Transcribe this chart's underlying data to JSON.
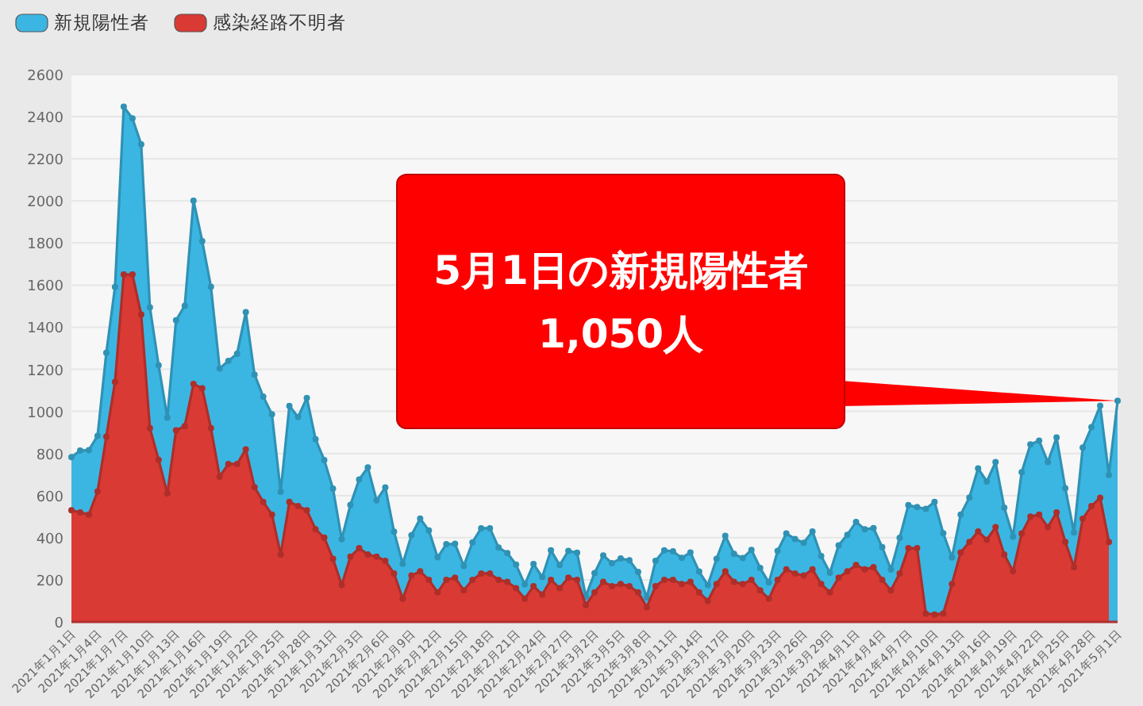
{
  "chart_data": {
    "type": "area",
    "legend": "top left",
    "grid": "y",
    "marker": "circle",
    "x": [
      "2021-01-01",
      "2021-01-02",
      "2021-01-03",
      "2021-01-04",
      "2021-01-05",
      "2021-01-06",
      "2021-01-07",
      "2021-01-08",
      "2021-01-09",
      "2021-01-10",
      "2021-01-11",
      "2021-01-12",
      "2021-01-13",
      "2021-01-14",
      "2021-01-15",
      "2021-01-16",
      "2021-01-17",
      "2021-01-18",
      "2021-01-19",
      "2021-01-20",
      "2021-01-21",
      "2021-01-22",
      "2021-01-23",
      "2021-01-24",
      "2021-01-25",
      "2021-01-26",
      "2021-01-27",
      "2021-01-28",
      "2021-01-29",
      "2021-01-30",
      "2021-01-31",
      "2021-02-01",
      "2021-02-02",
      "2021-02-03",
      "2021-02-04",
      "2021-02-05",
      "2021-02-06",
      "2021-02-07",
      "2021-02-08",
      "2021-02-09",
      "2021-02-10",
      "2021-02-11",
      "2021-02-12",
      "2021-02-13",
      "2021-02-14",
      "2021-02-15",
      "2021-02-16",
      "2021-02-17",
      "2021-02-18",
      "2021-02-19",
      "2021-02-20",
      "2021-02-21",
      "2021-02-22",
      "2021-02-23",
      "2021-02-24",
      "2021-02-25",
      "2021-02-26",
      "2021-02-27",
      "2021-02-28",
      "2021-03-01",
      "2021-03-02",
      "2021-03-03",
      "2021-03-04",
      "2021-03-05",
      "2021-03-06",
      "2021-03-07",
      "2021-03-08",
      "2021-03-09",
      "2021-03-10",
      "2021-03-11",
      "2021-03-12",
      "2021-03-13",
      "2021-03-14",
      "2021-03-15",
      "2021-03-16",
      "2021-03-17",
      "2021-03-18",
      "2021-03-19",
      "2021-03-20",
      "2021-03-21",
      "2021-03-22",
      "2021-03-23",
      "2021-03-24",
      "2021-03-25",
      "2021-03-26",
      "2021-03-27",
      "2021-03-28",
      "2021-03-29",
      "2021-03-30",
      "2021-03-31",
      "2021-04-01",
      "2021-04-02",
      "2021-04-03",
      "2021-04-04",
      "2021-04-05",
      "2021-04-06",
      "2021-04-07",
      "2021-04-08",
      "2021-04-09",
      "2021-04-10",
      "2021-04-11",
      "2021-04-12",
      "2021-04-13",
      "2021-04-14",
      "2021-04-15",
      "2021-04-16",
      "2021-04-17",
      "2021-04-18",
      "2021-04-19",
      "2021-04-20",
      "2021-04-21",
      "2021-04-22",
      "2021-04-23",
      "2021-04-24",
      "2021-04-25",
      "2021-04-26",
      "2021-04-27",
      "2021-04-28",
      "2021-04-29",
      "2021-04-30",
      "2021-05-01"
    ],
    "series": [
      {
        "name": "新規陽性者",
        "color": "#3bb6e2",
        "values": [
          783,
          814,
          816,
          884,
          1278,
          1591,
          2447,
          2392,
          2268,
          1494,
          1219,
          970,
          1433,
          1502,
          2001,
          1809,
          1592,
          1204,
          1240,
          1274,
          1471,
          1175,
          1070,
          986,
          618,
          1026,
          973,
          1064,
          868,
          769,
          633,
          393,
          556,
          676,
          734,
          577,
          639,
          429,
          276,
          412,
          491,
          434,
          307,
          369,
          371,
          266,
          378,
          445,
          445,
          353,
          327,
          272,
          178,
          275,
          213,
          340,
          270,
          337,
          329,
          121,
          232,
          316,
          279,
          301,
          293,
          237,
          116,
          290,
          340,
          335,
          304,
          330,
          239,
          175,
          300,
          409,
          323,
          303,
          342,
          256,
          187,
          337,
          420,
          394,
          376,
          430,
          313,
          234,
          364,
          414,
          475,
          440,
          446,
          355,
          249,
          399,
          555,
          545,
          537,
          570,
          421,
          306,
          510,
          591,
          729,
          667,
          759,
          543,
          405,
          711,
          843,
          861,
          759,
          876,
          635,
          425,
          828,
          925,
          1027,
          698,
          1050
        ]
      },
      {
        "name": "感染経路不明者",
        "color": "#da3a34",
        "values": [
          530,
          520,
          510,
          620,
          880,
          1140,
          1650,
          1650,
          1460,
          920,
          770,
          610,
          910,
          930,
          1130,
          1110,
          920,
          690,
          750,
          750,
          820,
          640,
          570,
          510,
          320,
          570,
          550,
          530,
          440,
          400,
          300,
          175,
          310,
          350,
          320,
          310,
          290,
          230,
          110,
          220,
          240,
          200,
          140,
          200,
          210,
          150,
          200,
          230,
          230,
          200,
          190,
          160,
          110,
          170,
          130,
          200,
          160,
          210,
          200,
          80,
          140,
          190,
          170,
          180,
          170,
          140,
          70,
          170,
          200,
          200,
          180,
          190,
          140,
          100,
          180,
          240,
          190,
          180,
          200,
          150,
          110,
          200,
          250,
          230,
          220,
          250,
          180,
          140,
          210,
          240,
          270,
          250,
          260,
          200,
          150,
          230,
          350,
          350,
          40,
          35,
          40,
          180,
          330,
          380,
          430,
          390,
          450,
          320,
          240,
          420,
          500,
          510,
          450,
          520,
          380,
          260,
          490,
          550,
          590,
          380,
          null
        ]
      }
    ],
    "xlim": [
      "2021-01-01",
      "2021-05-01"
    ],
    "xticks": [
      {
        "value": "2021-01-01",
        "label": "2021年1月1日"
      },
      {
        "value": "2021-01-04",
        "label": "2021年1月4日"
      },
      {
        "value": "2021-01-07",
        "label": "2021年1月7日"
      },
      {
        "value": "2021-01-10",
        "label": "2021年1月10日"
      },
      {
        "value": "2021-01-13",
        "label": "2021年1月13日"
      },
      {
        "value": "2021-01-16",
        "label": "2021年1月16日"
      },
      {
        "value": "2021-01-19",
        "label": "2021年1月19日"
      },
      {
        "value": "2021-01-22",
        "label": "2021年1月22日"
      },
      {
        "value": "2021-01-25",
        "label": "2021年1月25日"
      },
      {
        "value": "2021-01-28",
        "label": "2021年1月28日"
      },
      {
        "value": "2021-01-31",
        "label": "2021年1月31日"
      },
      {
        "value": "2021-02-03",
        "label": "2021年2月3日"
      },
      {
        "value": "2021-02-06",
        "label": "2021年2月6日"
      },
      {
        "value": "2021-02-09",
        "label": "2021年2月9日"
      },
      {
        "value": "2021-02-12",
        "label": "2021年2月12日"
      },
      {
        "value": "2021-02-15",
        "label": "2021年2月15日"
      },
      {
        "value": "2021-02-18",
        "label": "2021年2月18日"
      },
      {
        "value": "2021-02-21",
        "label": "2021年2月21日"
      },
      {
        "value": "2021-02-24",
        "label": "2021年2月24日"
      },
      {
        "value": "2021-02-27",
        "label": "2021年2月27日"
      },
      {
        "value": "2021-03-02",
        "label": "2021年3月2日"
      },
      {
        "value": "2021-03-05",
        "label": "2021年3月5日"
      },
      {
        "value": "2021-03-08",
        "label": "2021年3月8日"
      },
      {
        "value": "2021-03-11",
        "label": "2021年3月11日"
      },
      {
        "value": "2021-03-14",
        "label": "2021年3月14日"
      },
      {
        "value": "2021-03-17",
        "label": "2021年3月17日"
      },
      {
        "value": "2021-03-20",
        "label": "2021年3月20日"
      },
      {
        "value": "2021-03-23",
        "label": "2021年3月23日"
      },
      {
        "value": "2021-03-26",
        "label": "2021年3月26日"
      },
      {
        "value": "2021-03-29",
        "label": "2021年3月29日"
      },
      {
        "value": "2021-04-01",
        "label": "2021年4月1日"
      },
      {
        "value": "2021-04-04",
        "label": "2021年4月4日"
      },
      {
        "value": "2021-04-07",
        "label": "2021年4月7日"
      },
      {
        "value": "2021-04-10",
        "label": "2021年4月10日"
      },
      {
        "value": "2021-04-13",
        "label": "2021年4月13日"
      },
      {
        "value": "2021-04-16",
        "label": "2021年4月16日"
      },
      {
        "value": "2021-04-19",
        "label": "2021年4月19日"
      },
      {
        "value": "2021-04-22",
        "label": "2021年4月22日"
      },
      {
        "value": "2021-04-25",
        "label": "2021年4月25日"
      },
      {
        "value": "2021-04-28",
        "label": "2021年4月28日"
      },
      {
        "value": "2021-05-01",
        "label": "2021年5月1日"
      }
    ],
    "ylim": [
      0,
      2600
    ],
    "yticks": [
      0,
      200,
      400,
      600,
      800,
      1000,
      1200,
      1400,
      1600,
      1800,
      2000,
      2200,
      2400,
      2600
    ],
    "annotations": [
      {
        "text": "5月1日の新規陽性者\n1,050人",
        "x": "2021-05-01",
        "y": 1050
      }
    ]
  }
}
